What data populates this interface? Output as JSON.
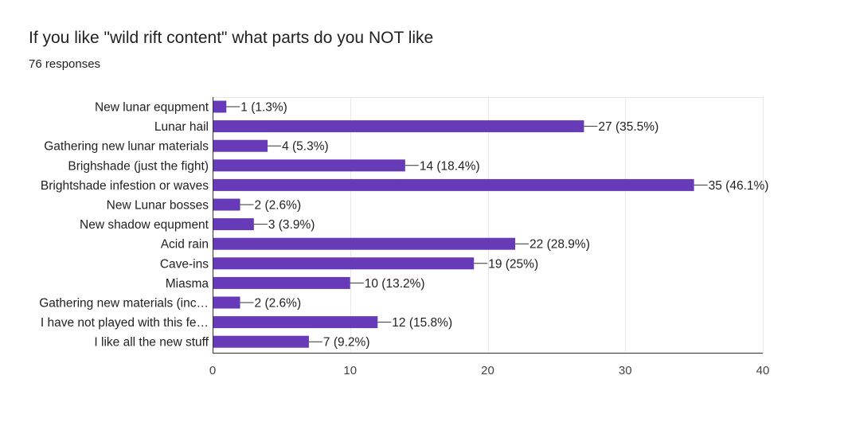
{
  "header": {
    "title": "If you like \"wild rift content\" what parts do you NOT like",
    "responses": "76 responses"
  },
  "colors": {
    "bar": "#673ab7",
    "grid": "#e8e8e8",
    "axis": "#333333",
    "connector": "#333333"
  },
  "chart_data": {
    "type": "bar",
    "orientation": "horizontal",
    "title": "If you like \"wild rift content\" what parts do you NOT like",
    "subtitle": "76 responses",
    "categories": [
      "New lunar equpment",
      "Lunar hail",
      "Gathering new lunar materials",
      "Brighshade (just the fight)",
      "Brightshade infestion or waves",
      "New Lunar bosses",
      "New shadow equpment",
      "Acid rain",
      "Cave-ins",
      "Miasma",
      "Gathering new materials (inc…",
      "I have not played with this fe…",
      "I like all the new stuff"
    ],
    "values": [
      1,
      27,
      4,
      14,
      35,
      2,
      3,
      22,
      19,
      10,
      2,
      12,
      7
    ],
    "data_labels": [
      "1 (1.3%)",
      "27 (35.5%)",
      "4 (5.3%)",
      "14 (18.4%)",
      "35 (46.1%)",
      "2 (2.6%)",
      "3 (3.9%)",
      "22 (28.9%)",
      "19 (25%)",
      "10 (13.2%)",
      "2 (2.6%)",
      "12 (15.8%)",
      "7 (9.2%)"
    ],
    "xlim": [
      0,
      40
    ],
    "xticks": [
      0,
      10,
      20,
      30,
      40
    ],
    "xtick_labels": [
      "0",
      "10",
      "20",
      "30",
      "40"
    ],
    "grid": true,
    "xlabel": "",
    "ylabel": ""
  }
}
